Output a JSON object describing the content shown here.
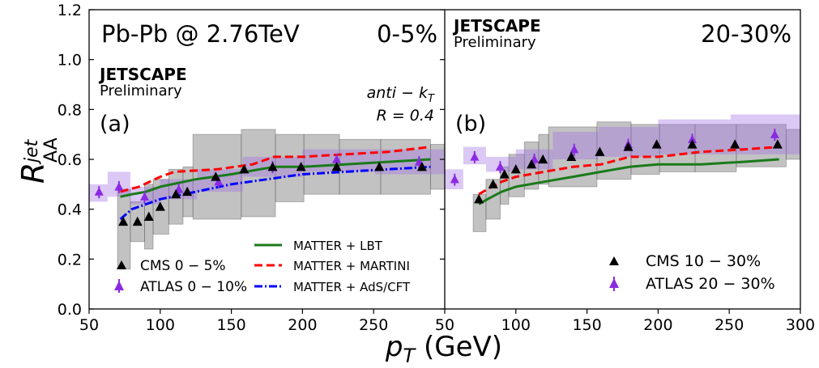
{
  "figure": {
    "xlabel_main": "p",
    "xlabel_sub": "T",
    "xlabel_unit": " (GeV)",
    "ylabel_main": "R",
    "ylabel_sup": "jet",
    "ylabel_sub": "AA"
  },
  "panels": {
    "a": {
      "system_label": "Pb-Pb @ 2.76TeV",
      "centrality_label": "0-5%",
      "collab_label": "JETSCAPE",
      "prelim_label": "Preliminary",
      "panel_tag": "(a)",
      "algo_label_italic": "anti − k",
      "algo_label_sub": "T",
      "radius_label": "R = 0.4",
      "legend": {
        "cms": "CMS   0 − 5%",
        "atlas": "ATLAS 0 − 10%",
        "lbt": "MATTER + LBT",
        "martini": "MATTER + MARTINI",
        "ads": "MATTER + AdS/CFT"
      }
    },
    "b": {
      "centrality_label": "20-30%",
      "collab_label": "JETSCAPE",
      "prelim_label": "Preliminary",
      "panel_tag": "(b)",
      "legend": {
        "cms": "CMS   10 − 30%",
        "atlas": "ATLAS 20 − 30%"
      }
    }
  },
  "chart_data": [
    {
      "type": "scatter",
      "panel": "a",
      "xlim": [
        50,
        300
      ],
      "ylim": [
        0.0,
        1.2
      ],
      "x_ticks": [
        50,
        100,
        150,
        200,
        250
      ],
      "x_tick_labels": [
        "50",
        "100",
        "150",
        "200",
        "250"
      ],
      "y_ticks": [
        0.0,
        0.2,
        0.4,
        0.6,
        0.8,
        1.0,
        1.2
      ],
      "y_tick_labels": [
        "0.0",
        "0.2",
        "0.4",
        "0.6",
        "0.8",
        "1.0",
        "1.2"
      ],
      "colors": {
        "cms": "#000000",
        "atlas": "#8a2be2",
        "atlas_band": "#c8a8f0",
        "cms_band": "#a9a9a9",
        "lbt": "#1a7a1a",
        "martini": "#ff0000",
        "ads": "#0000ff"
      },
      "cms": {
        "x": [
          74,
          84,
          92,
          100,
          111,
          119,
          139,
          159,
          179,
          199,
          224,
          254,
          284
        ],
        "y": [
          0.35,
          0.35,
          0.37,
          0.41,
          0.46,
          0.47,
          0.53,
          0.56,
          0.57,
          0.57,
          0.57,
          0.57,
          0.57
        ],
        "x_low": [
          70,
          79,
          89,
          95,
          106,
          116,
          123,
          157,
          181,
          201,
          226,
          255,
          290
        ],
        "x_high": [
          79,
          89,
          95,
          106,
          116,
          123,
          157,
          181,
          201,
          226,
          255,
          290,
          300
        ],
        "sys_low": [
          0.16,
          0.27,
          0.24,
          0.3,
          0.34,
          0.37,
          0.36,
          0.37,
          0.43,
          0.46,
          0.46,
          0.46,
          0.48
        ],
        "sys_high": [
          0.48,
          0.43,
          0.5,
          0.52,
          0.56,
          0.57,
          0.7,
          0.72,
          0.7,
          0.7,
          0.68,
          0.68,
          0.66
        ]
      },
      "atlas": {
        "x": [
          57,
          71,
          89,
          113,
          141,
          179,
          224,
          282
        ],
        "y": [
          0.47,
          0.49,
          0.45,
          0.48,
          0.51,
          0.57,
          0.6,
          0.59
        ],
        "x_low": [
          50,
          63,
          79,
          100,
          126,
          158,
          200,
          251
        ],
        "x_high": [
          63,
          79,
          100,
          126,
          158,
          200,
          251,
          300
        ],
        "sys_low": [
          0.43,
          0.45,
          0.42,
          0.44,
          0.47,
          0.53,
          0.55,
          0.54
        ],
        "sys_high": [
          0.5,
          0.55,
          0.49,
          0.52,
          0.56,
          0.61,
          0.64,
          0.64
        ]
      },
      "series": [
        {
          "name": "MATTER + LBT",
          "x": [
            72,
            80,
            90,
            100,
            125,
            150,
            160,
            180,
            200,
            230,
            260,
            290
          ],
          "y": [
            0.45,
            0.46,
            0.47,
            0.49,
            0.52,
            0.54,
            0.55,
            0.57,
            0.57,
            0.58,
            0.59,
            0.6
          ]
        },
        {
          "name": "MATTER + MARTINI",
          "x": [
            72,
            85,
            100,
            110,
            140,
            165,
            180,
            200,
            230,
            260,
            290
          ],
          "y": [
            0.47,
            0.49,
            0.53,
            0.55,
            0.56,
            0.58,
            0.61,
            0.61,
            0.62,
            0.63,
            0.65
          ]
        },
        {
          "name": "MATTER + AdS/CFT",
          "x": [
            72,
            80,
            90,
            100,
            125,
            150,
            175,
            200,
            230,
            260,
            290
          ],
          "y": [
            0.36,
            0.4,
            0.42,
            0.44,
            0.47,
            0.5,
            0.52,
            0.54,
            0.55,
            0.56,
            0.57
          ]
        }
      ]
    },
    {
      "type": "scatter",
      "panel": "b",
      "xlim": [
        50,
        300
      ],
      "ylim": [
        0.0,
        1.2
      ],
      "x_ticks": [
        50,
        100,
        150,
        200,
        250,
        300
      ],
      "x_tick_labels": [
        "50",
        "100",
        "150",
        "200",
        "250",
        "300"
      ],
      "cms": {
        "x": [
          74,
          84,
          92,
          100,
          111,
          119,
          139,
          159,
          179,
          199,
          224,
          254,
          284
        ],
        "y": [
          0.44,
          0.5,
          0.54,
          0.56,
          0.58,
          0.6,
          0.61,
          0.63,
          0.65,
          0.66,
          0.66,
          0.66,
          0.66
        ],
        "x_low": [
          70,
          79,
          89,
          95,
          106,
          116,
          123,
          157,
          181,
          201,
          226,
          255,
          290
        ],
        "x_high": [
          79,
          89,
          95,
          106,
          116,
          123,
          157,
          181,
          201,
          226,
          255,
          290,
          300
        ],
        "sys_low": [
          0.31,
          0.36,
          0.42,
          0.45,
          0.48,
          0.5,
          0.49,
          0.52,
          0.54,
          0.55,
          0.55,
          0.57,
          0.6
        ],
        "sys_high": [
          0.46,
          0.52,
          0.57,
          0.62,
          0.67,
          0.7,
          0.73,
          0.75,
          0.74,
          0.74,
          0.74,
          0.74,
          0.72
        ]
      },
      "atlas": {
        "x": [
          57,
          71,
          89,
          113,
          141,
          179,
          224,
          282
        ],
        "y": [
          0.52,
          0.61,
          0.57,
          0.6,
          0.64,
          0.66,
          0.68,
          0.7
        ],
        "x_low": [
          50,
          63,
          79,
          100,
          126,
          158,
          200,
          251
        ],
        "x_high": [
          63,
          79,
          100,
          126,
          158,
          200,
          251,
          300
        ],
        "sys_low": [
          0.48,
          0.58,
          0.55,
          0.56,
          0.6,
          0.61,
          0.62,
          0.62
        ],
        "sys_high": [
          0.56,
          0.65,
          0.61,
          0.64,
          0.71,
          0.73,
          0.76,
          0.78
        ]
      },
      "series": [
        {
          "name": "MATTER + LBT",
          "x": [
            74,
            80,
            90,
            100,
            120,
            140,
            160,
            180,
            200,
            230,
            260,
            285
          ],
          "y": [
            0.42,
            0.44,
            0.47,
            0.49,
            0.51,
            0.53,
            0.55,
            0.57,
            0.58,
            0.58,
            0.59,
            0.6
          ]
        },
        {
          "name": "MATTER + MARTINI",
          "x": [
            74,
            80,
            90,
            100,
            120,
            140,
            160,
            180,
            200,
            230,
            260,
            285
          ],
          "y": [
            0.46,
            0.48,
            0.51,
            0.53,
            0.55,
            0.57,
            0.58,
            0.61,
            0.61,
            0.63,
            0.64,
            0.65
          ]
        }
      ]
    }
  ]
}
